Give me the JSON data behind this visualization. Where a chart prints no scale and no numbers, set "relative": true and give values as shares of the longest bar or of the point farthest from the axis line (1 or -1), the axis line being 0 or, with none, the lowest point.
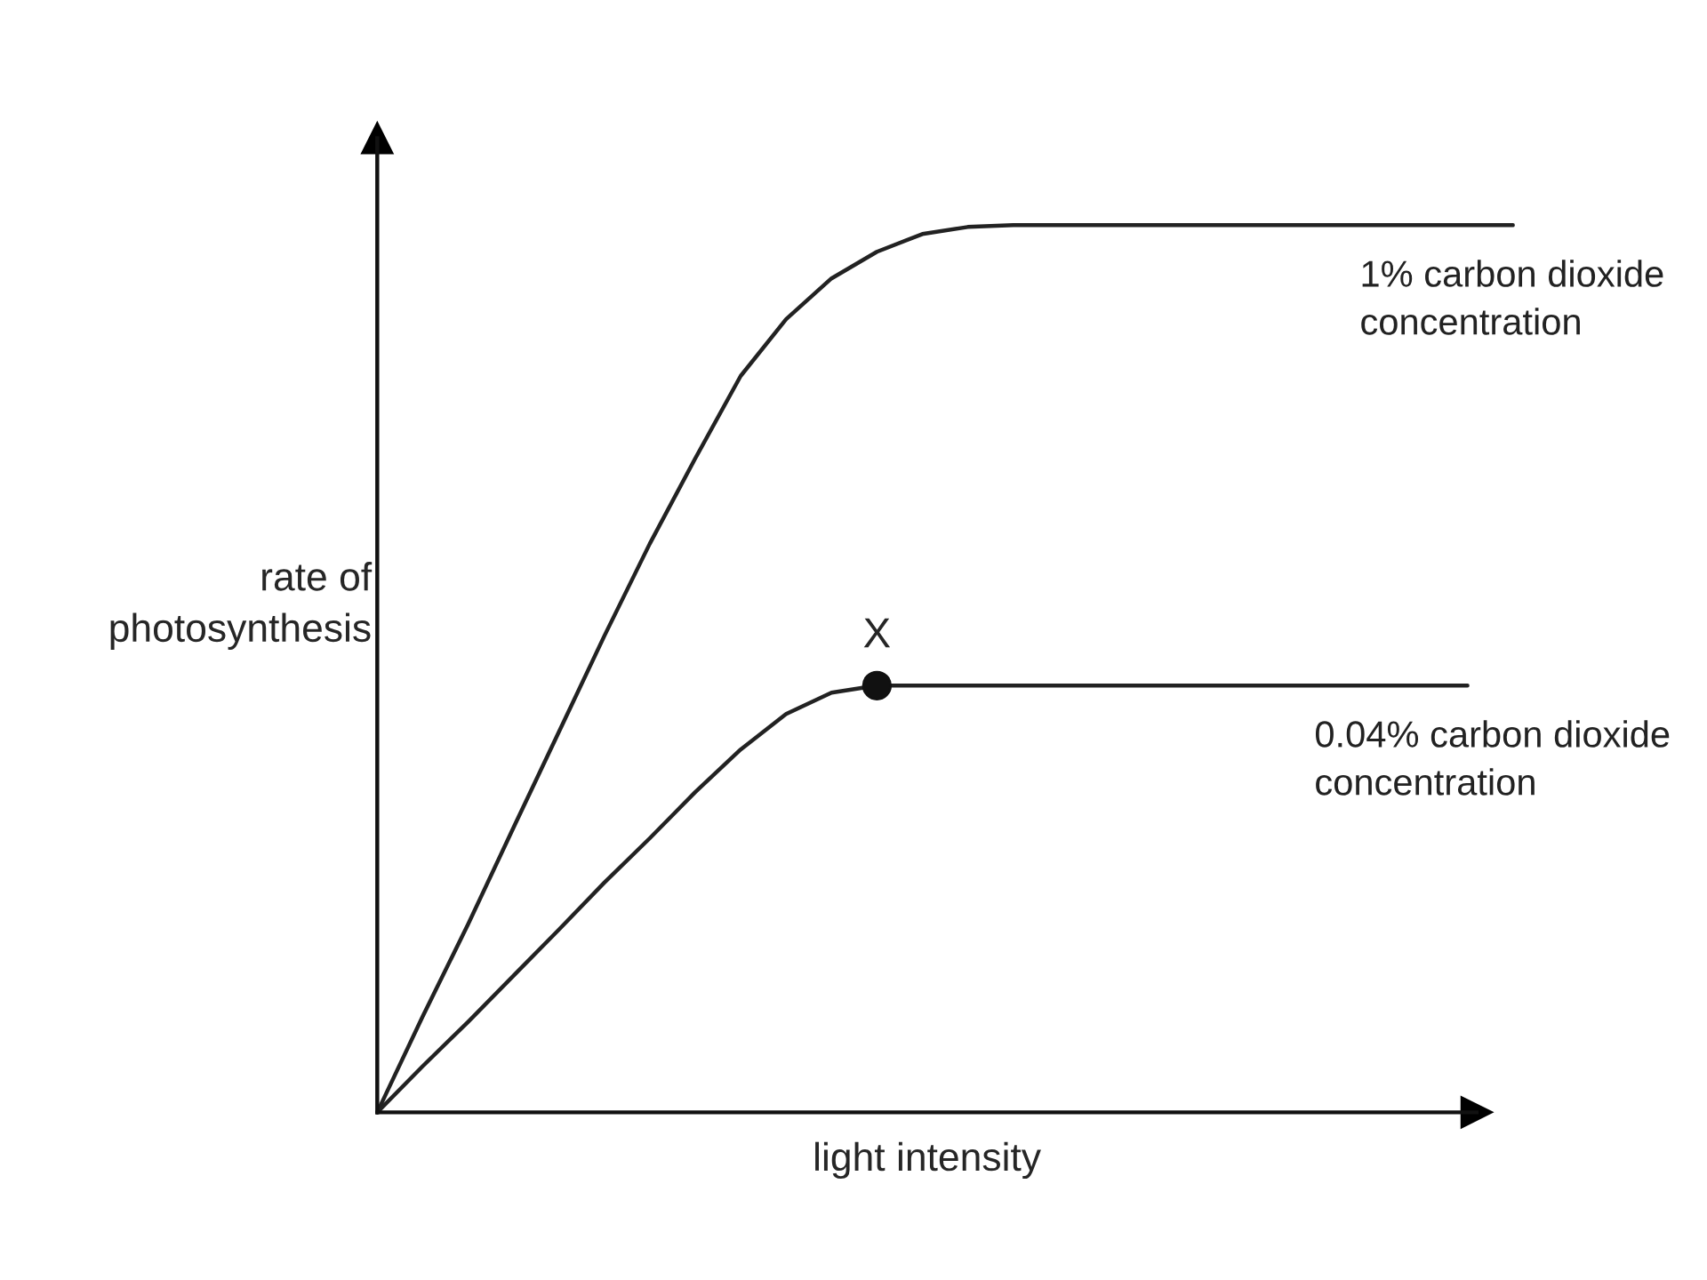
{
  "chart_data": {
    "type": "line",
    "relative": true,
    "xlabel": "light intensity",
    "ylabel": "rate of\nphotosynthesis",
    "categories": [
      null,
      null,
      null,
      null,
      null,
      null,
      null,
      null,
      null,
      null,
      null,
      null,
      null,
      null,
      null,
      null,
      null,
      null,
      null,
      null,
      null,
      null,
      null,
      null,
      null,
      null
    ],
    "series": [
      {
        "name": "1% carbon dioxide\nconcentration",
        "color": "#222222",
        "values": [
          0,
          0.108,
          0.212,
          0.321,
          0.429,
          0.537,
          0.641,
          0.737,
          0.83,
          0.894,
          0.94,
          0.97,
          0.99,
          0.998,
          1,
          1,
          1,
          1,
          1,
          1,
          1,
          1,
          1,
          1,
          1,
          1
        ]
      },
      {
        "name": "0.04% carbon dioxide\nconcentration",
        "color": "#222222",
        "values": [
          0,
          0.052,
          0.102,
          0.154,
          0.206,
          0.259,
          0.309,
          0.361,
          0.409,
          0.449,
          0.473,
          0.481,
          0.481,
          0.481,
          0.481,
          0.481,
          0.481,
          0.481,
          0.481,
          0.481,
          0.481,
          0.481,
          0.481,
          0.481,
          0.481,
          null
        ]
      }
    ],
    "annotations": [
      {
        "text": "X",
        "y": 0.481
      }
    ],
    "legend": false
  }
}
